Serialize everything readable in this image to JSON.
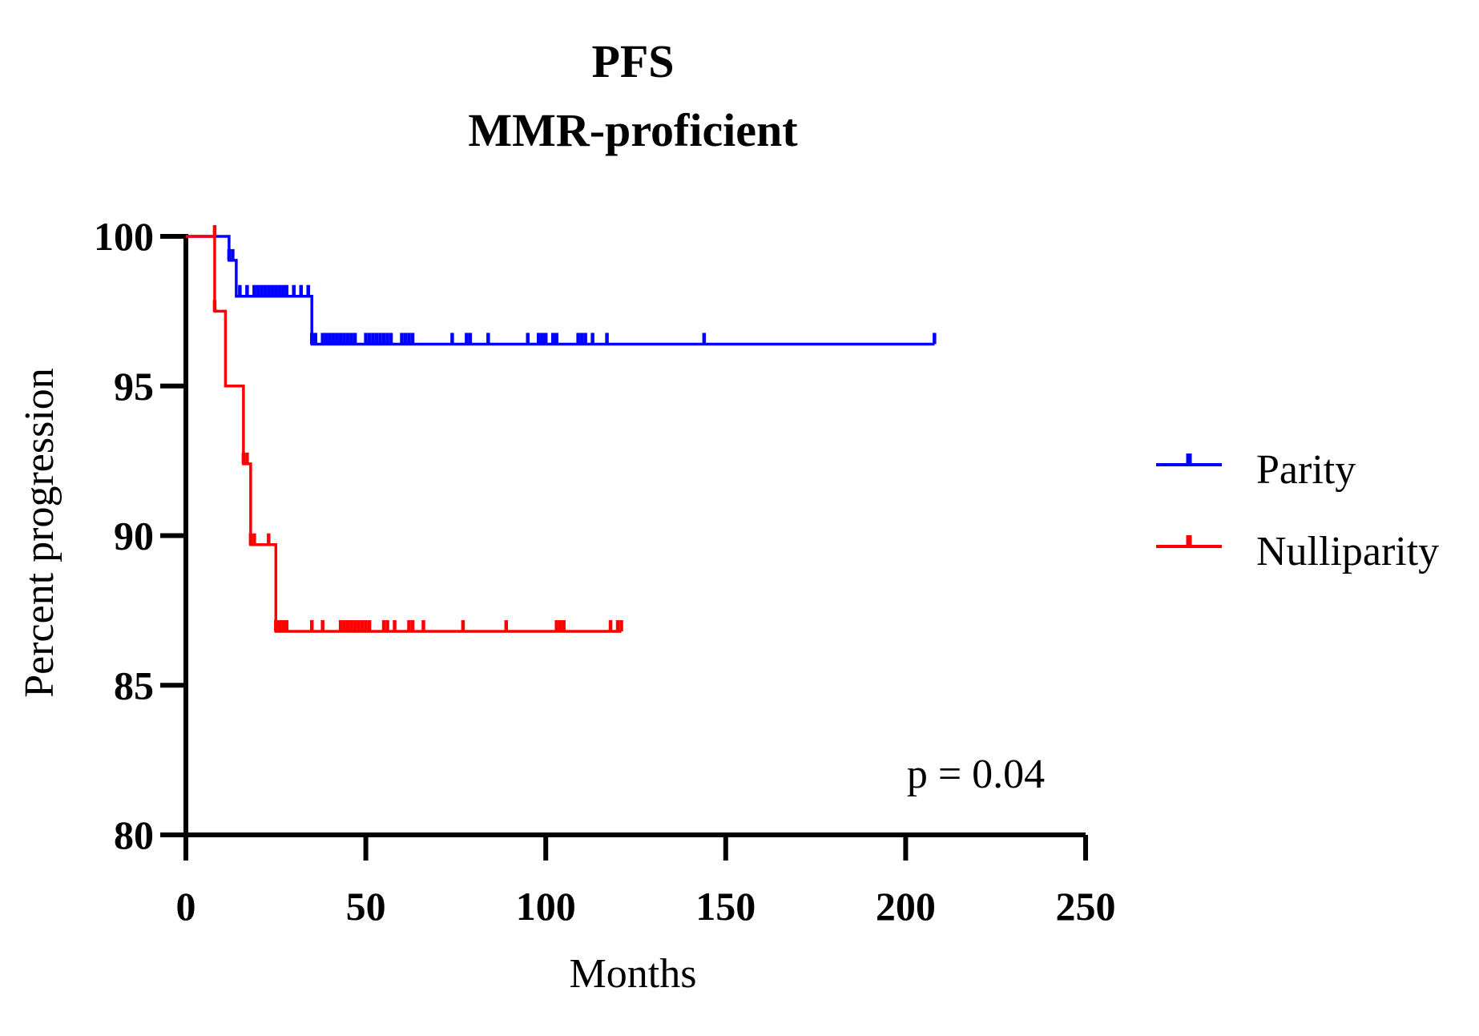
{
  "chart_data": {
    "type": "line",
    "subtype": "kaplan-meier",
    "title": "PFS",
    "subtitle": "MMR-proficient",
    "xlabel": "Months",
    "ylabel": "Percent progression",
    "xlim": [
      0,
      250
    ],
    "ylim": [
      80,
      100
    ],
    "xticks": [
      "0",
      "50",
      "100",
      "150",
      "200",
      "250"
    ],
    "yticks": [
      "80",
      "85",
      "90",
      "95",
      "100"
    ],
    "grid": false,
    "legend_position": "right",
    "annotation": "p = 0.04",
    "series": [
      {
        "name": "Parity",
        "color": "#0000ff",
        "steps": [
          [
            0,
            100
          ],
          [
            12,
            99.2
          ],
          [
            14,
            98.0
          ],
          [
            35,
            96.4
          ],
          [
            208,
            96.4
          ]
        ],
        "censored": [
          [
            12,
            99.2
          ],
          [
            13,
            99.2
          ],
          [
            15,
            98.0
          ],
          [
            17,
            98.0
          ],
          [
            19,
            98.0
          ],
          [
            20,
            98.0
          ],
          [
            21,
            98.0
          ],
          [
            22,
            98.0
          ],
          [
            23,
            98.0
          ],
          [
            24,
            98.0
          ],
          [
            25,
            98.0
          ],
          [
            26,
            98.0
          ],
          [
            27,
            98.0
          ],
          [
            28,
            98.0
          ],
          [
            30,
            98.0
          ],
          [
            32,
            98.0
          ],
          [
            34,
            98.0
          ],
          [
            35,
            96.4
          ],
          [
            36,
            96.4
          ],
          [
            38,
            96.4
          ],
          [
            39,
            96.4
          ],
          [
            40,
            96.4
          ],
          [
            41,
            96.4
          ],
          [
            42,
            96.4
          ],
          [
            43,
            96.4
          ],
          [
            44,
            96.4
          ],
          [
            45,
            96.4
          ],
          [
            46,
            96.4
          ],
          [
            47,
            96.4
          ],
          [
            50,
            96.4
          ],
          [
            51,
            96.4
          ],
          [
            52,
            96.4
          ],
          [
            53,
            96.4
          ],
          [
            54,
            96.4
          ],
          [
            55,
            96.4
          ],
          [
            56,
            96.4
          ],
          [
            57,
            96.4
          ],
          [
            60,
            96.4
          ],
          [
            61,
            96.4
          ],
          [
            62,
            96.4
          ],
          [
            63,
            96.4
          ],
          [
            74,
            96.4
          ],
          [
            78,
            96.4
          ],
          [
            79,
            96.4
          ],
          [
            84,
            96.4
          ],
          [
            95,
            96.4
          ],
          [
            98,
            96.4
          ],
          [
            99,
            96.4
          ],
          [
            100,
            96.4
          ],
          [
            102,
            96.4
          ],
          [
            103,
            96.4
          ],
          [
            109,
            96.4
          ],
          [
            110,
            96.4
          ],
          [
            111,
            96.4
          ],
          [
            113,
            96.4
          ],
          [
            117,
            96.4
          ],
          [
            144,
            96.4
          ],
          [
            208,
            96.4
          ]
        ]
      },
      {
        "name": "Nulliparity",
        "color": "#ff0000",
        "steps": [
          [
            0,
            100
          ],
          [
            8,
            97.5
          ],
          [
            11,
            95.0
          ],
          [
            16,
            92.4
          ],
          [
            18,
            89.7
          ],
          [
            25,
            86.8
          ],
          [
            121,
            86.8
          ]
        ],
        "censored": [
          [
            8,
            100.0
          ],
          [
            8,
            97.5
          ],
          [
            16,
            92.4
          ],
          [
            17,
            92.4
          ],
          [
            18,
            89.7
          ],
          [
            19,
            89.7
          ],
          [
            23,
            89.7
          ],
          [
            25,
            86.8
          ],
          [
            26,
            86.8
          ],
          [
            27,
            86.8
          ],
          [
            28,
            86.8
          ],
          [
            35,
            86.8
          ],
          [
            38,
            86.8
          ],
          [
            43,
            86.8
          ],
          [
            44,
            86.8
          ],
          [
            45,
            86.8
          ],
          [
            46,
            86.8
          ],
          [
            47,
            86.8
          ],
          [
            48,
            86.8
          ],
          [
            49,
            86.8
          ],
          [
            50,
            86.8
          ],
          [
            51,
            86.8
          ],
          [
            55,
            86.8
          ],
          [
            56,
            86.8
          ],
          [
            58,
            86.8
          ],
          [
            62,
            86.8
          ],
          [
            63,
            86.8
          ],
          [
            66,
            86.8
          ],
          [
            77,
            86.8
          ],
          [
            89,
            86.8
          ],
          [
            103,
            86.8
          ],
          [
            104,
            86.8
          ],
          [
            105,
            86.8
          ],
          [
            118,
            86.8
          ],
          [
            120,
            86.8
          ],
          [
            121,
            86.8
          ]
        ]
      }
    ]
  }
}
